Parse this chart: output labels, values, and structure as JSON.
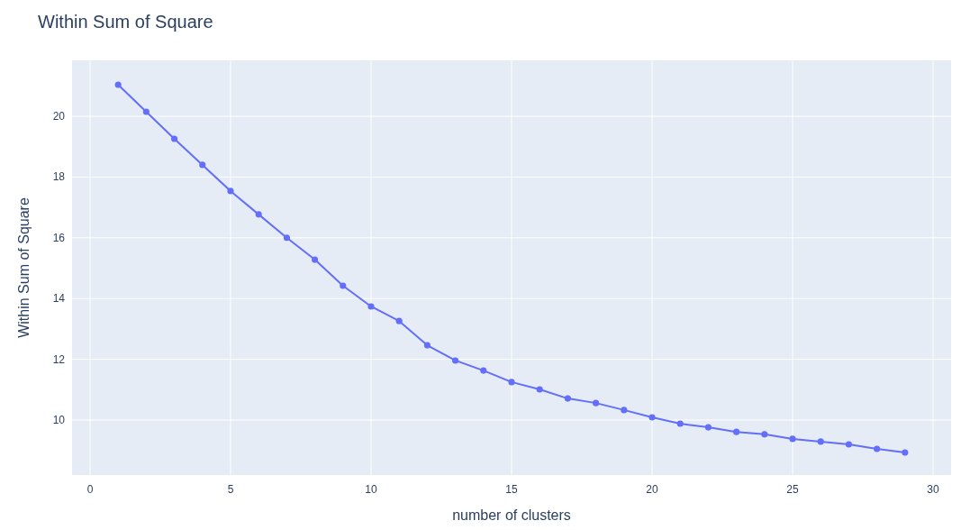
{
  "chart_data": {
    "type": "line",
    "title": "Within Sum of Square",
    "xlabel": "number of clusters",
    "ylabel": "Within Sum of Square",
    "x": [
      1,
      2,
      3,
      4,
      5,
      6,
      7,
      8,
      9,
      10,
      11,
      12,
      13,
      14,
      15,
      16,
      17,
      18,
      19,
      20,
      21,
      22,
      23,
      24,
      25,
      26,
      27,
      28,
      29
    ],
    "series": [
      {
        "color": "#636efa",
        "values": [
          21.04,
          20.15,
          19.26,
          18.4,
          17.54,
          16.77,
          16.0,
          15.28,
          14.42,
          13.74,
          13.26,
          12.46,
          11.96,
          11.63,
          11.25,
          11.01,
          10.71,
          10.56,
          10.33,
          10.09,
          9.88,
          9.76,
          9.61,
          9.53,
          9.38,
          9.29,
          9.2,
          9.05,
          8.93
        ]
      }
    ],
    "xlim": [
      -0.64,
      30.64
    ],
    "xticks": [
      0,
      5,
      10,
      15,
      20,
      25,
      30
    ],
    "ylim": [
      8.19,
      21.84
    ],
    "yticks": [
      10,
      12,
      14,
      16,
      18,
      20
    ],
    "grid": true,
    "marker": "circle",
    "line_style": "solid"
  }
}
